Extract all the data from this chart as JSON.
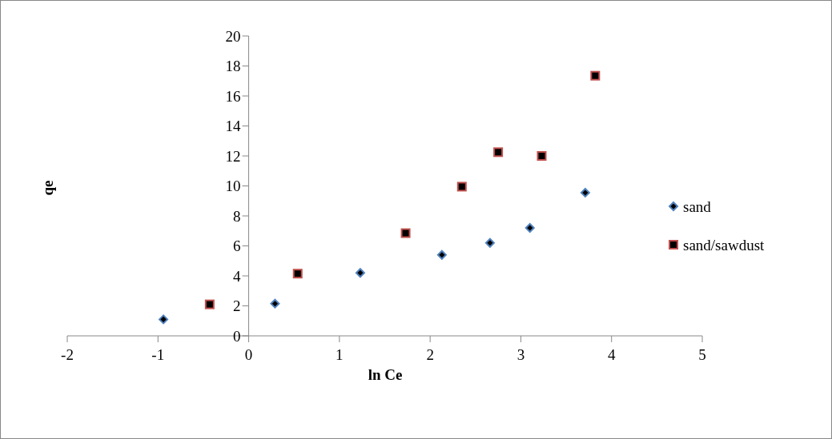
{
  "chart_data": {
    "type": "scatter",
    "xlabel": "ln Ce",
    "ylabel": "qe",
    "xlim": [
      -2,
      5
    ],
    "xticks": [
      -2,
      -1,
      0,
      1,
      2,
      3,
      4,
      5
    ],
    "ylim": [
      0,
      20
    ],
    "yticks": [
      0,
      2,
      4,
      6,
      8,
      10,
      12,
      14,
      16,
      18,
      20
    ],
    "grid": false,
    "legend": "right",
    "series": [
      {
        "name": "sand",
        "color": "#4f81bd",
        "marker": "diamond",
        "x": [
          -0.94,
          0.29,
          1.23,
          2.13,
          2.66,
          3.1,
          3.71
        ],
        "values": [
          1.1,
          2.15,
          4.2,
          5.4,
          6.2,
          7.2,
          9.55
        ]
      },
      {
        "name": "sand/sawdust",
        "color": "#c0504d",
        "marker": "square",
        "x": [
          -0.43,
          0.54,
          1.73,
          2.35,
          2.75,
          3.23,
          3.82
        ],
        "values": [
          2.1,
          4.15,
          6.85,
          9.95,
          12.25,
          12,
          17.35
        ]
      }
    ]
  }
}
